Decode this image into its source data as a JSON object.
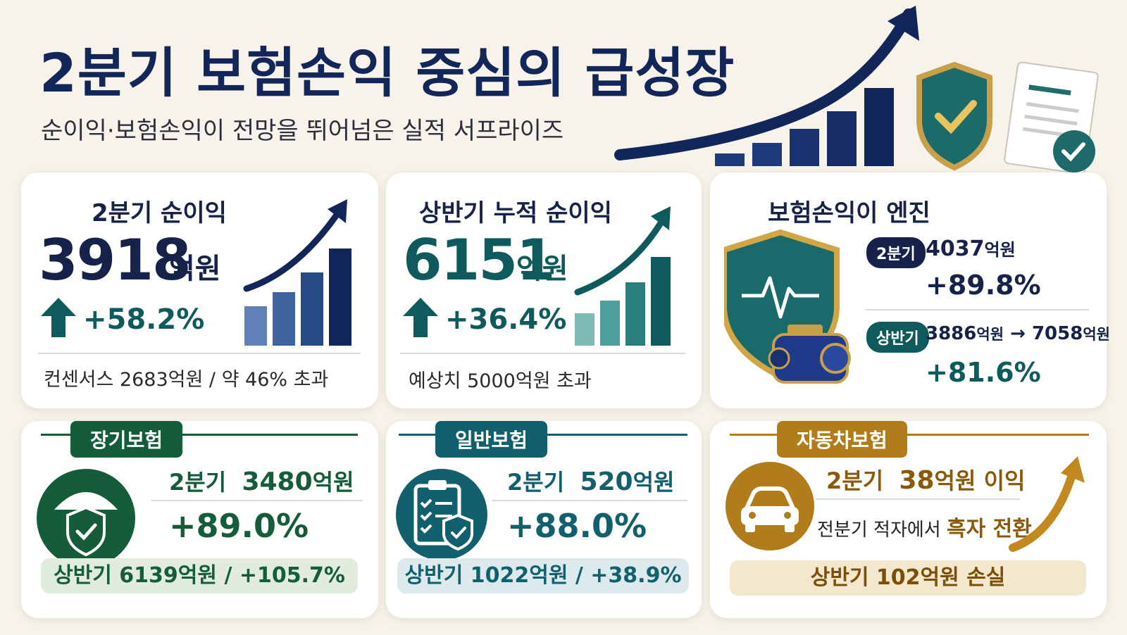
{
  "header": {
    "title": "2분기 보험손익 중심의 급성장",
    "subtitle": "순이익·보험손익이 전망을 뛰어넘은 실적 서프라이즈"
  },
  "cards": {
    "q2_net": {
      "title": "2분기 순이익",
      "value": "3918",
      "unit": "억원",
      "change": "+58.2%",
      "note": "컨센서스 2683억원 / 약 46% 초과",
      "color": "#16224a"
    },
    "h1_net": {
      "title": "상반기 누적 순이익",
      "value": "6151",
      "unit": "억원",
      "change": "+36.4%",
      "note": "예상치 5000억원 초과",
      "color": "#0f5a5c"
    },
    "engine": {
      "title": "보험손익이 엔진",
      "q2_tag": "2분기",
      "q2_value": "4037",
      "q2_unit": "억원",
      "q2_change": "+89.8%",
      "h1_tag": "상반기",
      "h1_from": "3886",
      "h1_from_unit": "억원",
      "arrow": "→",
      "h1_to": "7058",
      "h1_to_unit": "억원",
      "h1_change": "+81.6%"
    },
    "long_term": {
      "tag": "장기보험",
      "quarter_label": "2분기",
      "quarter_value": "3480",
      "quarter_unit": "억원",
      "change": "+89.0%",
      "half": "상반기  6139억원  /  +105.7%",
      "color": "#145c3a"
    },
    "general": {
      "tag": "일반보험",
      "quarter_label": "2분기",
      "quarter_value": "520",
      "quarter_unit": "억원",
      "change": "+88.0%",
      "half": "상반기  1022억원  /  +38.9%",
      "color": "#12606e"
    },
    "auto": {
      "tag": "자동차보험",
      "quarter_label": "2분기",
      "quarter_value": "38",
      "quarter_unit": "억원 이익",
      "turn_prefix": "전분기 적자에서",
      "turn_highlight": "흑자 전환",
      "half": "상반기  102억원 손실",
      "color": "#b07d1a"
    }
  },
  "colors": {
    "navy": "#132659",
    "teal": "#0f6b6b",
    "green": "#145c3a",
    "gold": "#b07d1a",
    "background": "#f7f3ea"
  },
  "icons": [
    "growth-chart-icon",
    "shield-check-icon",
    "document-icon",
    "umbrella-shield-icon",
    "clipboard-shield-icon",
    "car-icon",
    "heartbeat-shield-icon",
    "engine-icon"
  ]
}
